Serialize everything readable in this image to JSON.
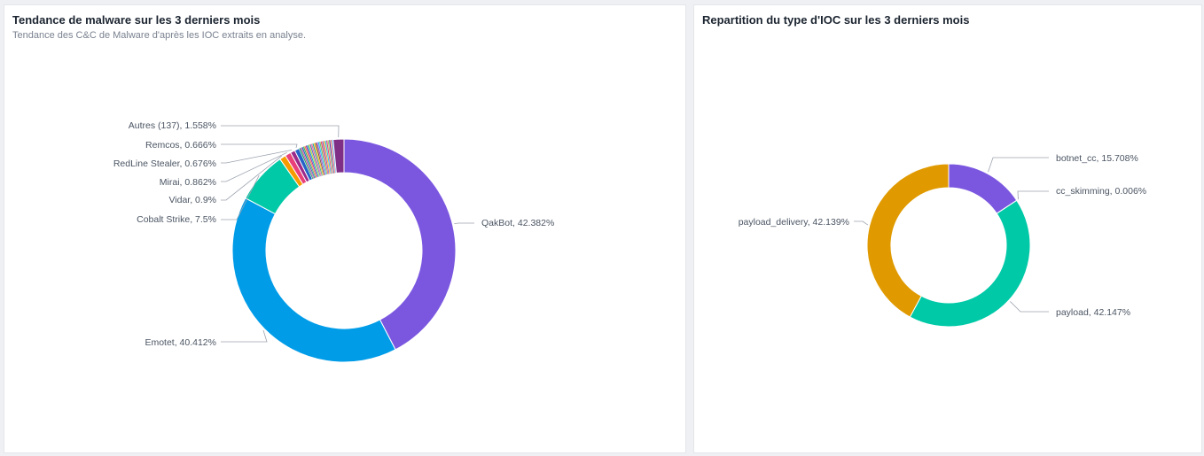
{
  "panels": {
    "malware": {
      "title": "Tendance de malware sur les 3 derniers mois",
      "subtitle": "Tendance des C&C de Malware d'après les IOC extraits en analyse."
    },
    "ioc": {
      "title": "Repartition du type d'IOC sur les 3 derniers mois"
    }
  },
  "chart_data": [
    {
      "type": "pie",
      "title": "Tendance de malware sur les 3 derniers mois",
      "subtitle": "Tendance des C&C de Malware d'après les IOC extraits en analyse.",
      "donut": true,
      "slices": [
        {
          "name": "QakBot",
          "value": 42.382,
          "label": "QakBot, 42.382%",
          "color": "#7b57e0"
        },
        {
          "name": "Emotet",
          "value": 40.412,
          "label": "Emotet, 40.412%",
          "color": "#009ce8"
        },
        {
          "name": "Cobalt Strike",
          "value": 7.5,
          "label": "Cobalt Strike, 7.5%",
          "color": "#00c9a7"
        },
        {
          "name": "Vidar",
          "value": 0.9,
          "label": "Vidar, 0.9%",
          "color": "#f59b00"
        },
        {
          "name": "Mirai",
          "value": 0.862,
          "label": "Mirai, 0.862%",
          "color": "#e9407a"
        },
        {
          "name": "RedLine Stealer",
          "value": 0.676,
          "label": "RedLine Stealer, 0.676%",
          "color": "#9c2a8a"
        },
        {
          "name": "Remcos",
          "value": 0.666,
          "label": "Remcos, 0.666%",
          "color": "#2563c9"
        },
        {
          "name": "Autres (137)",
          "value": 1.558,
          "label": "Autres (137), 1.558%",
          "color": "#7f2f86"
        }
      ],
      "unlabeled_small_slices_colors": [
        "#0f9d58",
        "#d64b9b",
        "#1565c0",
        "#4caf50",
        "#ff7043",
        "#8e24aa",
        "#00acc1",
        "#c0ca33",
        "#5c6bc0",
        "#f06292",
        "#26a69a",
        "#ffb300",
        "#6d4c41",
        "#ab47bc",
        "#29b6f6",
        "#66bb6a",
        "#ef5350",
        "#7e57c2",
        "#ffa726",
        "#26c6da",
        "#ec407a",
        "#9ccc65",
        "#5e35b1",
        "#ff8a65",
        "#42a5f5"
      ]
    },
    {
      "type": "pie",
      "title": "Repartition du type d'IOC sur les 3 derniers mois",
      "donut": true,
      "slices": [
        {
          "name": "botnet_cc",
          "value": 15.708,
          "label": "botnet_cc, 15.708%",
          "color": "#7b57e0"
        },
        {
          "name": "cc_skimming",
          "value": 0.006,
          "label": "cc_skimming, 0.006%",
          "color": "#009ce8"
        },
        {
          "name": "payload",
          "value": 42.147,
          "label": "payload, 42.147%",
          "color": "#00c9a7"
        },
        {
          "name": "payload_delivery",
          "value": 42.139,
          "label": "payload_delivery, 42.139%",
          "color": "#e09a00"
        }
      ]
    }
  ]
}
